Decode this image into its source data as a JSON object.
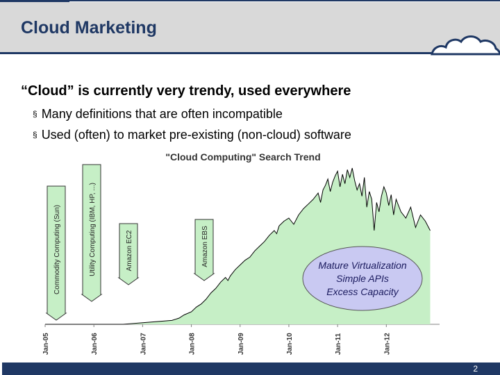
{
  "slide": {
    "title": "Cloud Marketing",
    "subtitle": "“Cloud” is currently very trendy, used everywhere",
    "bullets": [
      "Many definitions that are often incompatible",
      "Used (often) to market pre-existing (non-cloud) software"
    ],
    "bullet_marker": "§",
    "page_number": "2"
  },
  "colors": {
    "navy": "#1f3864",
    "header_gray": "#d9d9d9",
    "area_fill": "#c6efc6",
    "area_line": "#000000",
    "callout_fill": "#c9c9f2"
  },
  "chart_data": {
    "type": "area",
    "title": "\"Cloud Computing\" Search Trend",
    "x_tick_labels": [
      "Jan-05",
      "Jan-06",
      "Jan-07",
      "Jan-08",
      "Jan-09",
      "Jan-10",
      "Jan-11",
      "Jan-12"
    ],
    "x_range": [
      2005.0,
      2012.95
    ],
    "y_range": [
      0,
      100
    ],
    "series": [
      {
        "x": [
          2005.0,
          2006.6,
          2007.0,
          2007.2,
          2007.4,
          2007.6,
          2007.75,
          2007.85,
          2008.0,
          2008.1,
          2008.2,
          2008.3,
          2008.4,
          2008.5,
          2008.6,
          2008.7,
          2008.75,
          2008.8,
          2008.9,
          2009.0,
          2009.1,
          2009.2,
          2009.3,
          2009.4,
          2009.5,
          2009.6,
          2009.7,
          2009.75,
          2009.8,
          2009.9,
          2010.0,
          2010.1,
          2010.2,
          2010.3,
          2010.4,
          2010.5,
          2010.6,
          2010.65,
          2010.7,
          2010.75,
          2010.8,
          2010.85,
          2010.9,
          2010.95,
          2011.0,
          2011.05,
          2011.1,
          2011.15,
          2011.2,
          2011.25,
          2011.3,
          2011.35,
          2011.4,
          2011.45,
          2011.5,
          2011.55,
          2011.6,
          2011.65,
          2011.7,
          2011.75,
          2011.8,
          2011.85,
          2011.9,
          2011.95,
          2012.0,
          2012.05,
          2012.1,
          2012.15,
          2012.2,
          2012.3,
          2012.4,
          2012.5,
          2012.6,
          2012.7,
          2012.8,
          2012.9
        ],
        "y": [
          0,
          0,
          1,
          1.5,
          2,
          2.5,
          4,
          6,
          8,
          11,
          13,
          16,
          20,
          23,
          27,
          30,
          28,
          31,
          35,
          38,
          41,
          43,
          47,
          50,
          53,
          57,
          60,
          58,
          63,
          66,
          68,
          64,
          70,
          74,
          77,
          80,
          84,
          78,
          86,
          89,
          93,
          85,
          91,
          95,
          98,
          88,
          96,
          90,
          99,
          94,
          100,
          92,
          86,
          90,
          82,
          94,
          75,
          85,
          80,
          60,
          78,
          72,
          82,
          88,
          84,
          76,
          83,
          70,
          80,
          72,
          68,
          75,
          62,
          70,
          66,
          60
        ]
      }
    ],
    "arrows": [
      "Commodity Computing (Sun)",
      "Utility Computing (IBM, HP, ...)",
      "Amazon EC2",
      "Amazon EBS"
    ],
    "callout": [
      "Mature Virtualization",
      "Simple APIs",
      "Excess Capacity"
    ]
  }
}
